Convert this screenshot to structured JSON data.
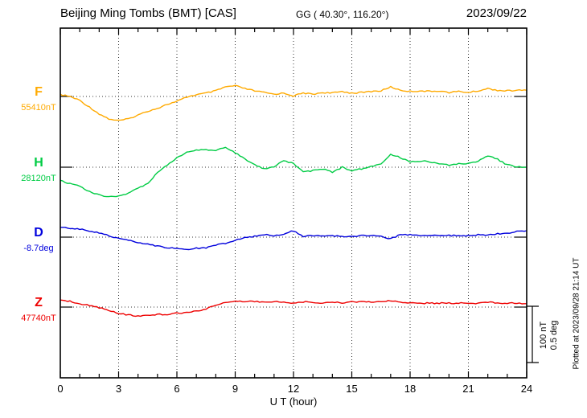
{
  "header": {
    "title": "Beijing Ming Tombs (BMT)  [CAS]",
    "coordinates": "GG ( 40.30°, 116.20°)",
    "date": "2023/09/22"
  },
  "scale_bar_labels": {
    "nt": "100 nT",
    "deg": "0.5 deg"
  },
  "plotted_at": "Plotted at 2023/09/28 21:14 UT",
  "chart_data": {
    "type": "line",
    "title": "Beijing Ming Tombs (BMT)  [CAS]",
    "subtitle": "GG ( 40.30°, 116.20°)",
    "date": "2023/09/22",
    "xlabel": "U T (hour)",
    "x_range": [
      0,
      24
    ],
    "x_ticks": [
      0,
      3,
      6,
      9,
      12,
      15,
      18,
      21,
      24
    ],
    "x_minor_step": 1,
    "x_start": 0,
    "x_step": 0.5,
    "grid": "dotted vertical at 3h intervals; dotted horizontal baseline per trace",
    "scale_bar": {
      "nT": 100,
      "deg": 0.5
    },
    "series": [
      {
        "name": "F",
        "unit": "nT",
        "base": 55410,
        "base_label": "55410nT",
        "color": "#ffaa00",
        "offsets": [
          3,
          0,
          -7,
          -19,
          -31,
          -40,
          -43,
          -40,
          -33,
          -26,
          -21,
          -14,
          -9,
          -1,
          3,
          6,
          10,
          17,
          19,
          14,
          10,
          7,
          4,
          6,
          1,
          6,
          4,
          7,
          6,
          9,
          6,
          7,
          9,
          10,
          17,
          11,
          9,
          10,
          9,
          10,
          7,
          9,
          7,
          10,
          14,
          11,
          10,
          11,
          11
        ]
      },
      {
        "name": "H",
        "unit": "nT",
        "base": 28120,
        "base_label": "28120nT",
        "color": "#00cc44",
        "offsets": [
          -24,
          -29,
          -34,
          -43,
          -49,
          -53,
          -51,
          -46,
          -37,
          -29,
          -10,
          4,
          17,
          26,
          30,
          31,
          29,
          36,
          26,
          14,
          4,
          -3,
          1,
          11,
          7,
          -9,
          -6,
          -3,
          -9,
          0,
          -6,
          -3,
          1,
          6,
          23,
          17,
          9,
          11,
          10,
          6,
          4,
          6,
          7,
          11,
          20,
          14,
          4,
          1,
          0
        ]
      },
      {
        "name": "D",
        "unit": "deg",
        "base": -8.7,
        "base_label": "-8.7deg",
        "color": "#0000dd",
        "offsets": [
          0.086,
          0.079,
          0.071,
          0.057,
          0.036,
          0.014,
          -0.014,
          -0.029,
          -0.05,
          -0.064,
          -0.079,
          -0.093,
          -0.1,
          -0.107,
          -0.1,
          -0.093,
          -0.071,
          -0.057,
          -0.029,
          -0.007,
          0.007,
          0.021,
          0.014,
          0.029,
          0.057,
          0.007,
          0.014,
          0.007,
          0.014,
          0.007,
          0.007,
          0.014,
          0.014,
          0.007,
          -0.014,
          0.021,
          0.021,
          0.014,
          0.014,
          0.014,
          0.014,
          0.014,
          0.014,
          0.021,
          0.021,
          0.029,
          0.036,
          0.05,
          0.057
        ]
      },
      {
        "name": "Z",
        "unit": "nT",
        "base": 47740,
        "base_label": "47740nT",
        "color": "#ee0000",
        "offsets": [
          13,
          10,
          6,
          3,
          -1,
          -6,
          -11,
          -14,
          -16,
          -14,
          -13,
          -13,
          -11,
          -10,
          -7,
          -3,
          3,
          9,
          11,
          10,
          10,
          9,
          10,
          9,
          7,
          9,
          9,
          7,
          9,
          7,
          9,
          9,
          9,
          10,
          11,
          9,
          7,
          7,
          7,
          7,
          7,
          7,
          7,
          7,
          9,
          7,
          7,
          7,
          6
        ]
      }
    ]
  }
}
